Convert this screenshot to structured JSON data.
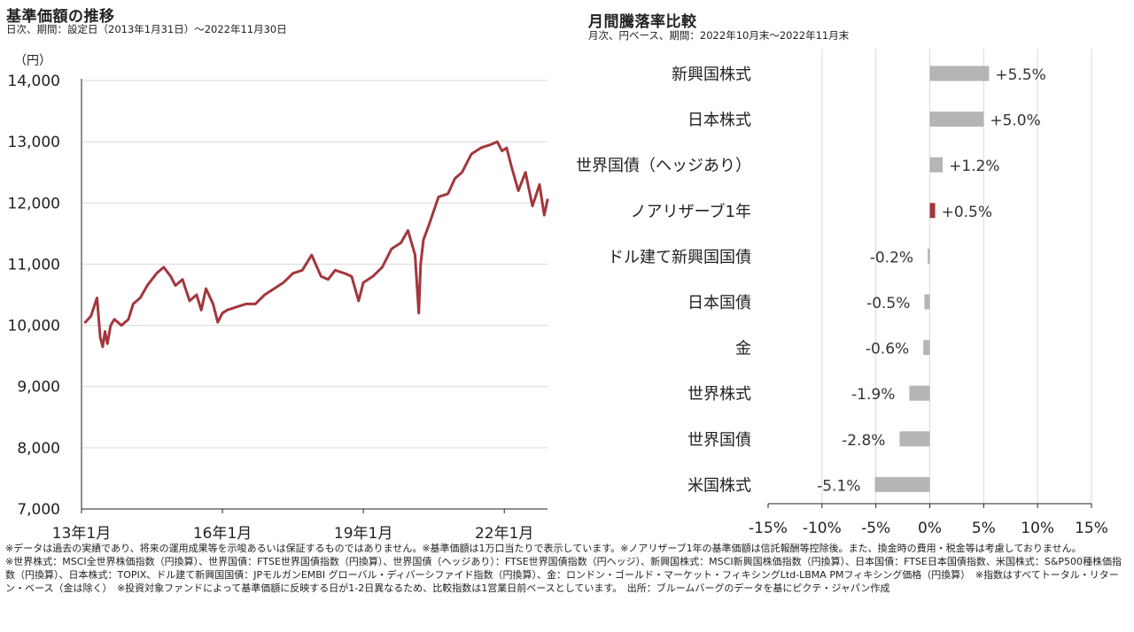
{
  "left_panel": {
    "title": "基準価額の推移",
    "subtitle": "日次、期間：設定日（2013年1月31日）～2022年11月30日",
    "unit_label": "（円）"
  },
  "right_panel": {
    "title": "月間騰落率比較",
    "subtitle": "月次、円ベース、期間：2022年10月末～2022年11月末"
  },
  "colors": {
    "nav_line": "#a3373d",
    "highlight_bar": "#a3373d",
    "bar": "#b5b5b5",
    "grid": "#d9d9d9",
    "axis": "#222222"
  },
  "notes": [
    "※データは過去の実績であり、将来の運用成果等を示唆あるいは保証するものではありません。※基準価額は1万口当たりで表示しています。※ノアリザーブ1年の基準価額は信託報酬等控除後。また、換金時の費用・税金等は考慮しておりません。",
    "※世界株式：MSCI全世界株価指数（円換算）、世界国債：FTSE世界国債指数（円換算）、世界国債（ヘッジあり）：FTSE世界国債指数（円ヘッジ）、新興国株式：MSCI新興国株価指数（円換算）、日本国債：FTSE日本国債指数、米国株式：S&P500種株価指数（円換算）、日本株式：TOPIX、ドル建て新興国国債：JPモルガンEMBI グローバル・ディバーシファイド指数（円換算）、金：ロンドン・ゴールド・マーケット・フィキシングLtd-LBMA PMフィキシング価格（円換算）　※指数はすべてトータル・リターン・ベース（金は除く）　※投資対象ファンドによって基準価額に反映する日が1-2日異なるため、比較指数は1営業日前ベースとしています。　出所：ブルームバーグのデータを基にピクテ・ジャパン作成"
  ],
  "chart_data": [
    {
      "type": "line",
      "title": "基準価額の推移",
      "ylabel": "（円）",
      "x_tick_labels": [
        "13年1月",
        "16年1月",
        "19年1月",
        "22年1月"
      ],
      "x_tick_years": [
        2013.0,
        2016.0,
        2019.0,
        2022.0
      ],
      "xlim": [
        2013.0,
        2022.92
      ],
      "ylim": [
        7000,
        14000
      ],
      "y_ticks": [
        7000,
        8000,
        9000,
        10000,
        11000,
        12000,
        13000,
        14000
      ],
      "y_tick_labels": [
        "7,000",
        "8,000",
        "9,000",
        "10,000",
        "11,000",
        "12,000",
        "13,000",
        "14,000"
      ],
      "grid": true,
      "series": [
        {
          "x": [
            2013.08,
            2013.2,
            2013.33,
            2013.4,
            2013.45,
            2013.5,
            2013.55,
            2013.62,
            2013.7,
            2013.85,
            2014.0,
            2014.1,
            2014.25,
            2014.4,
            2014.6,
            2014.75,
            2014.9,
            2015.0,
            2015.15,
            2015.3,
            2015.45,
            2015.55,
            2015.65,
            2015.8,
            2015.9,
            2016.0,
            2016.1,
            2016.3,
            2016.5,
            2016.7,
            2016.9,
            2017.1,
            2017.3,
            2017.5,
            2017.7,
            2017.9,
            2018.1,
            2018.25,
            2018.4,
            2018.6,
            2018.75,
            2018.9,
            2019.0,
            2019.2,
            2019.4,
            2019.6,
            2019.8,
            2019.95,
            2020.1,
            2020.18,
            2020.22,
            2020.28,
            2020.4,
            2020.6,
            2020.8,
            2020.95,
            2021.1,
            2021.3,
            2021.5,
            2021.7,
            2021.85,
            2021.95,
            2022.05,
            2022.15,
            2022.3,
            2022.45,
            2022.6,
            2022.75,
            2022.85,
            2022.92
          ],
          "values": [
            10050,
            10150,
            10450,
            9800,
            9650,
            9900,
            9700,
            10000,
            10100,
            10000,
            10100,
            10350,
            10450,
            10650,
            10850,
            10950,
            10800,
            10650,
            10750,
            10400,
            10500,
            10250,
            10600,
            10350,
            10050,
            10200,
            10250,
            10300,
            10350,
            10350,
            10500,
            10600,
            10700,
            10850,
            10900,
            11150,
            10800,
            10750,
            10900,
            10850,
            10800,
            10400,
            10700,
            10800,
            10950,
            11250,
            11350,
            11550,
            11150,
            10200,
            11000,
            11400,
            11650,
            12100,
            12150,
            12400,
            12500,
            12800,
            12900,
            12950,
            13000,
            12850,
            12900,
            12600,
            12200,
            12500,
            11950,
            12300,
            11800,
            12050
          ]
        }
      ]
    },
    {
      "type": "bar",
      "orientation": "horizontal",
      "title": "月間騰落率比較",
      "categories": [
        "新興国株式",
        "日本株式",
        "世界国債（ヘッジあり）",
        "ノアリザーブ1年",
        "ドル建て新興国国債",
        "日本国債",
        "金",
        "世界株式",
        "世界国債",
        "米国株式"
      ],
      "values": [
        5.5,
        5.0,
        1.2,
        0.5,
        -0.2,
        -0.5,
        -0.6,
        -1.9,
        -2.8,
        -5.1
      ],
      "value_labels": [
        "+5.5%",
        "+5.0%",
        "+1.2%",
        "+0.5%",
        "-0.2%",
        "-0.5%",
        "-0.6%",
        "-1.9%",
        "-2.8%",
        "-5.1%"
      ],
      "highlight": "ノアリザーブ1年",
      "xlim": [
        -15,
        15
      ],
      "x_ticks": [
        -15,
        -10,
        -5,
        0,
        5,
        10,
        15
      ],
      "x_tick_labels": [
        "-15%",
        "-10%",
        "-5%",
        "0%",
        "5%",
        "10%",
        "15%"
      ],
      "grid": true
    }
  ]
}
